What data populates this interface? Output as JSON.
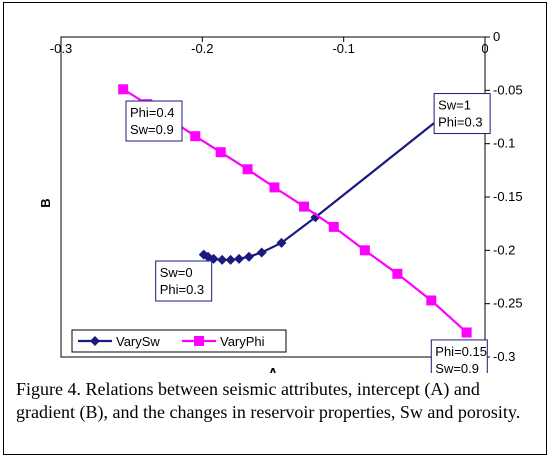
{
  "chart_data": {
    "type": "scatter",
    "xlabel": "A",
    "ylabel": "B",
    "xlim": [
      -0.3,
      0
    ],
    "ylim": [
      -0.3,
      0
    ],
    "x_ticks": [
      {
        "value": -0.3,
        "label": "-0.3"
      },
      {
        "value": -0.2,
        "label": "-0.2"
      },
      {
        "value": -0.1,
        "label": "-0.1"
      },
      {
        "value": 0,
        "label": "0"
      }
    ],
    "y_ticks": [
      {
        "value": 0,
        "label": "0"
      },
      {
        "value": -0.05,
        "label": "-0.05"
      },
      {
        "value": -0.1,
        "label": "-0.1"
      },
      {
        "value": -0.15,
        "label": "-0.15"
      },
      {
        "value": -0.2,
        "label": "-0.2"
      },
      {
        "value": -0.25,
        "label": "-0.25"
      },
      {
        "value": -0.3,
        "label": "-0.3"
      }
    ],
    "series": [
      {
        "name": "VarySw",
        "color": "#1a1a80",
        "marker": "diamond",
        "points": [
          {
            "x": -0.199,
            "y": -0.204
          },
          {
            "x": -0.196,
            "y": -0.206
          },
          {
            "x": -0.192,
            "y": -0.208
          },
          {
            "x": -0.186,
            "y": -0.209
          },
          {
            "x": -0.18,
            "y": -0.209
          },
          {
            "x": -0.174,
            "y": -0.208
          },
          {
            "x": -0.167,
            "y": -0.206
          },
          {
            "x": -0.158,
            "y": -0.202
          },
          {
            "x": -0.144,
            "y": -0.193
          },
          {
            "x": -0.12,
            "y": -0.169
          },
          {
            "x": -0.023,
            "y": -0.067
          }
        ]
      },
      {
        "name": "VaryPhi",
        "color": "#ff00ff",
        "marker": "square",
        "points": [
          {
            "x": -0.256,
            "y": -0.049
          },
          {
            "x": -0.239,
            "y": -0.063
          },
          {
            "x": -0.222,
            "y": -0.078
          },
          {
            "x": -0.205,
            "y": -0.093
          },
          {
            "x": -0.187,
            "y": -0.108
          },
          {
            "x": -0.168,
            "y": -0.124
          },
          {
            "x": -0.149,
            "y": -0.141
          },
          {
            "x": -0.128,
            "y": -0.159
          },
          {
            "x": -0.107,
            "y": -0.178
          },
          {
            "x": -0.085,
            "y": -0.2
          },
          {
            "x": -0.062,
            "y": -0.222
          },
          {
            "x": -0.038,
            "y": -0.247
          },
          {
            "x": -0.013,
            "y": -0.277
          }
        ]
      }
    ],
    "annotations": [
      {
        "lines": [
          "Phi=0.4",
          "Sw=0.9"
        ],
        "anchor": {
          "x": -0.254,
          "y": -0.06
        }
      },
      {
        "lines": [
          "Sw=1",
          "Phi=0.3"
        ],
        "anchor": {
          "x": -0.036,
          "y": -0.053
        }
      },
      {
        "lines": [
          "Sw=0",
          "Phi=0.3"
        ],
        "anchor": {
          "x": -0.233,
          "y": -0.21
        }
      },
      {
        "lines": [
          "Phi=0.15",
          "Sw=0.9"
        ],
        "anchor": {
          "x": -0.038,
          "y": -0.284
        }
      }
    ],
    "legend": {
      "placement": "bottom-left",
      "entries": [
        "VarySw",
        "VaryPhi"
      ]
    },
    "grid": false
  },
  "caption": "Figure 4. Relations between seismic attributes, intercept (A) and gradient (B), and the changes in reservoir properties, Sw and porosity."
}
